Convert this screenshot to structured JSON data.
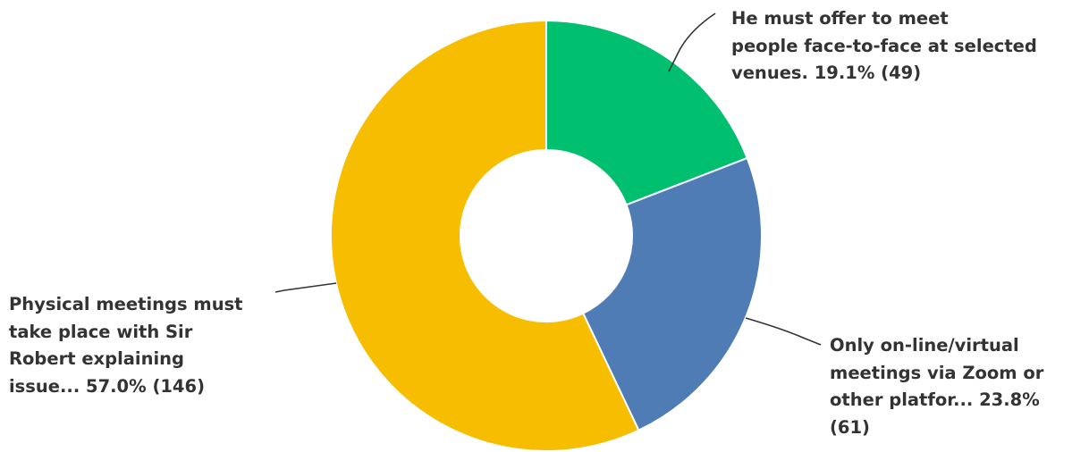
{
  "chart_data": {
    "type": "pie",
    "variant": "donut",
    "slices": [
      {
        "label": "He must offer to meet people face-to-face at selected venues. 19.1% (49)",
        "percent": 19.1,
        "count": 49,
        "color": "#00BF6F"
      },
      {
        "label": "Only on-line/virtual meetings via Zoom or other platfor... 23.8% (61)",
        "percent": 23.8,
        "count": 61,
        "color": "#507CB6"
      },
      {
        "label": "Physical meetings must take place with Sir Robert explaining issue... 57.0% (146)",
        "percent": 57.0,
        "count": 146,
        "color": "#F7BD00"
      }
    ]
  }
}
